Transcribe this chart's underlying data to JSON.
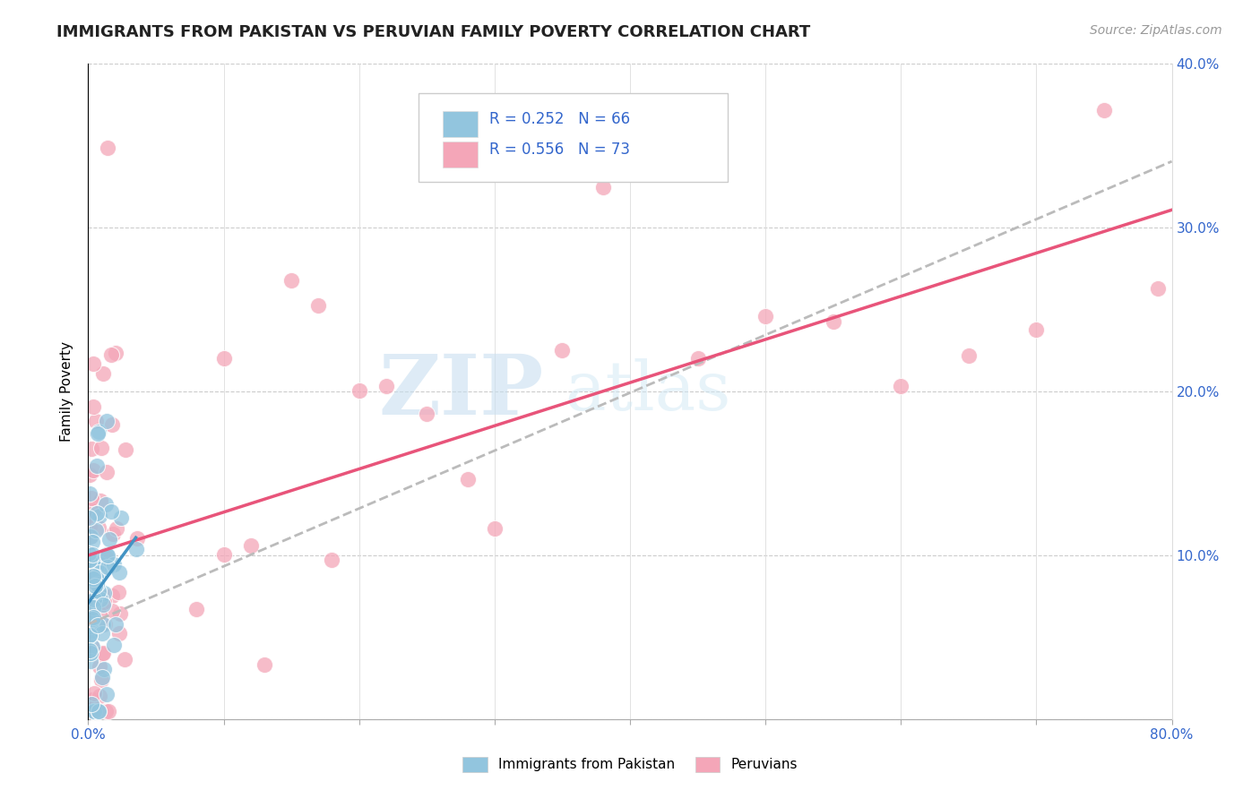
{
  "title": "IMMIGRANTS FROM PAKISTAN VS PERUVIAN FAMILY POVERTY CORRELATION CHART",
  "source": "Source: ZipAtlas.com",
  "ylabel": "Family Poverty",
  "xlim": [
    0,
    0.8
  ],
  "ylim": [
    0,
    0.4
  ],
  "xtick_positions": [
    0.0,
    0.1,
    0.2,
    0.3,
    0.4,
    0.5,
    0.6,
    0.7,
    0.8
  ],
  "xtick_labels": [
    "0.0%",
    "",
    "",
    "",
    "",
    "",
    "",
    "",
    "80.0%"
  ],
  "ytick_positions": [
    0.0,
    0.1,
    0.2,
    0.3,
    0.4
  ],
  "ytick_labels_right": [
    "",
    "10.0%",
    "20.0%",
    "30.0%",
    "40.0%"
  ],
  "color_pakistan": "#92c5de",
  "color_peruvian": "#f4a6b8",
  "color_trendline_pakistan": "#4393c3",
  "color_trendline_peruvian": "#e8547a",
  "color_trendline_gray": "#bbbbbb",
  "watermark_zip": "ZIP",
  "watermark_atlas": "atlas",
  "background_color": "#ffffff",
  "title_fontsize": 13,
  "axis_label_fontsize": 11,
  "tick_fontsize": 11,
  "source_fontsize": 10,
  "legend_entry1": "R = 0.252   N = 66",
  "legend_entry2": "R = 0.556   N = 73"
}
